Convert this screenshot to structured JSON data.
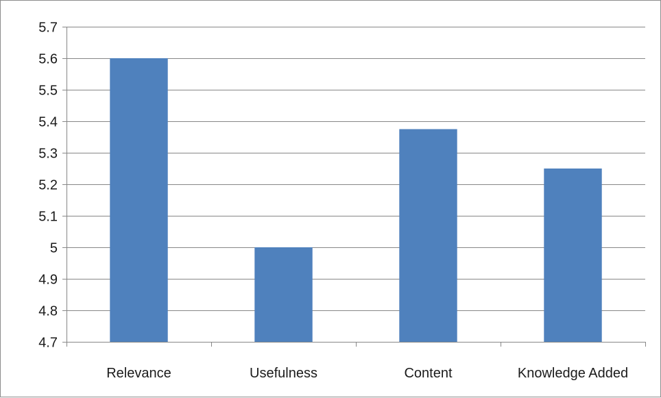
{
  "chart_data": {
    "type": "bar",
    "categories": [
      "Relevance",
      "Usefulness",
      "Content",
      "Knowledge Added"
    ],
    "values": [
      5.6,
      5.0,
      5.375,
      5.25
    ],
    "title": "",
    "xlabel": "",
    "ylabel": "",
    "ylim": [
      4.7,
      5.7
    ],
    "yticks": [
      "4.7",
      "4.8",
      "4.9",
      "5",
      "5.1",
      "5.2",
      "5.3",
      "5.4",
      "5.5",
      "5.6",
      "5.7"
    ],
    "grid": true,
    "legend": "none",
    "colors": {
      "bar": "#4F81BD",
      "grid": "#868686",
      "axis": "#868686",
      "text": "#1a1a1a"
    }
  }
}
